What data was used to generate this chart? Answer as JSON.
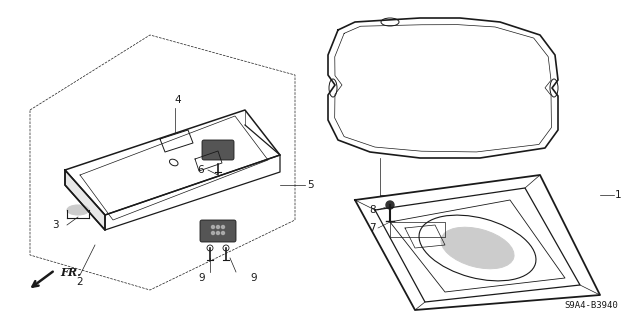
{
  "bg_color": "#ffffff",
  "line_color": "#1a1a1a",
  "fig_width": 6.4,
  "fig_height": 3.2,
  "dpi": 100,
  "diagram_code": "S9A4-B3940",
  "fr_label": "FR."
}
